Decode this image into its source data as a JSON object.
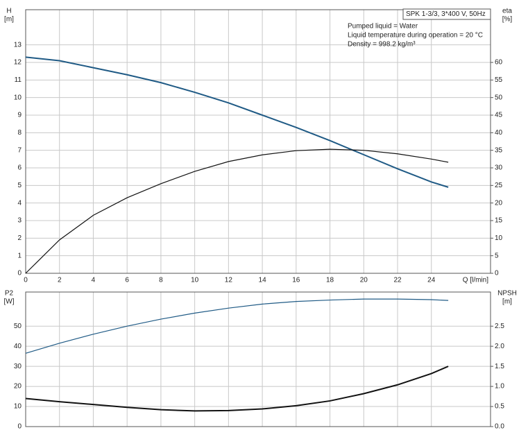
{
  "chart_data": [
    {
      "type": "line",
      "y_label": "H",
      "y_unit": "[m]",
      "y2_label": "eta",
      "y2_unit": "[%]",
      "x_label": "Q [l/min]",
      "annotations": [
        "SPK 1-3/3, 3*400 V, 50Hz",
        "Pumped liquid = Water",
        "Liquid temperature during operation = 20 °C",
        "Density = 998.2 kg/m³"
      ],
      "x": [
        0,
        2,
        4,
        6,
        8,
        10,
        12,
        14,
        16,
        18,
        20,
        22,
        24,
        25
      ],
      "xlim": [
        0,
        27.5
      ],
      "xticks": [
        0,
        2,
        4,
        6,
        8,
        10,
        12,
        14,
        16,
        18,
        20,
        22,
        24
      ],
      "ylim": [
        0,
        15
      ],
      "yticks": [
        0,
        1,
        2,
        3,
        4,
        5,
        6,
        7,
        8,
        9,
        10,
        11,
        12,
        13
      ],
      "y2lim": [
        0,
        75
      ],
      "y2ticks": [
        0,
        5,
        10,
        15,
        20,
        25,
        30,
        35,
        40,
        45,
        50,
        55,
        60
      ],
      "grid": true,
      "series": [
        {
          "name": "H",
          "color": "#1f5a85",
          "width": 2,
          "values": [
            12.3,
            12.1,
            11.7,
            11.3,
            10.85,
            10.3,
            9.7,
            9.0,
            8.3,
            7.55,
            6.75,
            5.95,
            5.2,
            4.9
          ]
        },
        {
          "name": "eta",
          "color": "#111111",
          "width": 1.2,
          "axis": "y2",
          "values": [
            0,
            9.5,
            16.5,
            21.5,
            25.5,
            29,
            31.8,
            33.7,
            34.9,
            35.3,
            35.0,
            34.0,
            32.5,
            31.6
          ]
        }
      ]
    },
    {
      "type": "line",
      "y_label": "P2",
      "y_unit": "[W]",
      "y2_label": "NPSH",
      "y2_unit": "[m]",
      "x": [
        0,
        2,
        4,
        6,
        8,
        10,
        12,
        14,
        16,
        18,
        20,
        22,
        24,
        25
      ],
      "xlim": [
        0,
        27.5
      ],
      "ylim": [
        0,
        67
      ],
      "yticks": [
        0,
        10,
        20,
        30,
        40,
        50
      ],
      "y2lim": [
        0,
        3.35
      ],
      "y2ticks": [
        {
          "value": 0,
          "label": "0.0"
        },
        0.5,
        {
          "value": 1,
          "label": "1.0"
        },
        1.5,
        {
          "value": 2,
          "label": "2.0"
        },
        2.5
      ],
      "grid": true,
      "series": [
        {
          "name": "P2",
          "color": "#1f5a85",
          "width": 1.2,
          "values": [
            36.5,
            41.5,
            46,
            50,
            53.5,
            56.5,
            59,
            61,
            62.3,
            63,
            63.5,
            63.5,
            63.2,
            62.8
          ]
        },
        {
          "name": "NPSH",
          "color": "#111111",
          "width": 2,
          "axis": "y2",
          "values": [
            0.7,
            0.62,
            0.55,
            0.48,
            0.42,
            0.39,
            0.4,
            0.44,
            0.52,
            0.64,
            0.82,
            1.04,
            1.32,
            1.5
          ]
        }
      ]
    }
  ]
}
